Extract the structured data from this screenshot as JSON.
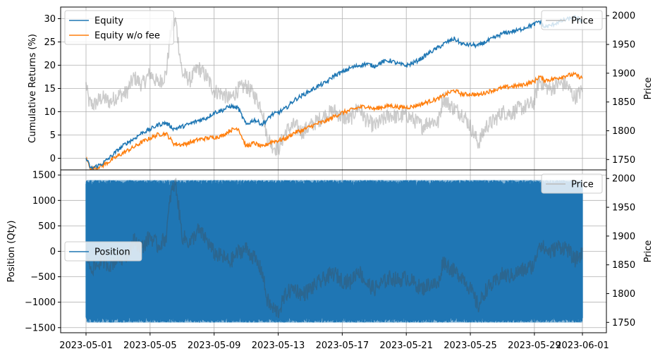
{
  "chart_data": [
    {
      "type": "line",
      "panel": "top",
      "ylabel": "Cumulative Returns (%)",
      "y2label": "Price",
      "ylim": [
        -2.5,
        32.5
      ],
      "y2lim": [
        1732,
        2015
      ],
      "yticks": [
        0,
        5,
        10,
        15,
        20,
        25,
        30
      ],
      "y2ticks": [
        1750,
        1800,
        1850,
        1900,
        1950,
        2000
      ],
      "grid": true,
      "legend_left": {
        "placement": "upper-left",
        "entries": [
          "Equity",
          "Equity w/o fee"
        ]
      },
      "legend_right": {
        "placement": "upper-right",
        "entries": [
          "Price"
        ]
      },
      "series": [
        {
          "name": "Equity",
          "color": "#1f77b4",
          "axis": "left",
          "x": [
            0,
            0.3,
            0.6,
            1,
            1.5,
            2,
            2.5,
            3,
            3.5,
            4,
            4.5,
            5,
            5.5,
            6,
            6.5,
            7,
            7.5,
            8,
            8.5,
            9,
            9.5,
            10,
            10.5,
            11,
            11.3,
            11.6,
            12,
            12.5,
            13,
            13.5,
            14,
            14.5,
            15,
            15.5,
            16,
            16.5,
            17,
            17.5,
            18,
            18.5,
            19,
            19.5,
            20,
            20.5,
            21,
            21.5,
            22,
            22.5,
            23,
            23.5,
            24,
            24.5,
            25,
            25.5,
            26,
            26.5,
            27,
            27.5,
            28,
            28.3,
            28.6,
            29,
            29.5,
            30,
            30.5,
            31
          ],
          "values": [
            0,
            -2.2,
            -1.8,
            -1.2,
            0.2,
            1.8,
            3.2,
            4.2,
            5.5,
            6.2,
            7.2,
            7.6,
            6.3,
            6.8,
            7.4,
            8.1,
            8.6,
            9.8,
            10.3,
            11.2,
            10.8,
            7.2,
            8.3,
            7.3,
            8.2,
            9.4,
            9.8,
            10.8,
            12.5,
            13.5,
            14.5,
            15.5,
            16.3,
            17.8,
            18.5,
            19.4,
            19.9,
            20.3,
            19.8,
            20.7,
            21.0,
            20.3,
            19.9,
            20.6,
            21.6,
            22.8,
            23.8,
            24.9,
            25.7,
            24.5,
            24.4,
            24.2,
            25.1,
            25.9,
            26.8,
            27.2,
            27.5,
            28.2,
            28.8,
            29.5,
            28.2,
            28.5,
            29.3,
            29.8,
            30.3,
            29.6
          ]
        },
        {
          "name": "Equity w/o fee",
          "color": "#ff7f0e",
          "axis": "left",
          "x": [
            0,
            0.3,
            0.6,
            1,
            1.5,
            2,
            2.5,
            3,
            3.5,
            4,
            4.5,
            5,
            5.5,
            6,
            6.5,
            7,
            7.5,
            8,
            8.5,
            9,
            9.5,
            10,
            10.5,
            11,
            11.3,
            11.6,
            12,
            12.5,
            13,
            13.5,
            14,
            14.5,
            15,
            15.5,
            16,
            16.5,
            17,
            17.5,
            18,
            18.5,
            19,
            19.5,
            20,
            20.5,
            21,
            21.5,
            22,
            22.5,
            23,
            23.5,
            24,
            24.5,
            25,
            25.5,
            26,
            26.5,
            27,
            27.5,
            28,
            28.3,
            28.6,
            29,
            29.5,
            30,
            30.5,
            31
          ],
          "values": [
            0,
            -2.2,
            -2.0,
            -1.6,
            -0.6,
            0.5,
            1.5,
            2.4,
            3.5,
            4.3,
            5.1,
            5.3,
            3.1,
            2.9,
            3.4,
            4.0,
            4.3,
            4.5,
            4.8,
            6.0,
            6.5,
            2.5,
            3.3,
            2.4,
            3.0,
            3.6,
            3.8,
            4.3,
            5.5,
            6.0,
            6.8,
            7.5,
            8.0,
            9.0,
            9.8,
            10.3,
            10.9,
            11.2,
            10.6,
            11.0,
            11.3,
            11.0,
            10.9,
            11.2,
            11.7,
            12.3,
            12.8,
            13.8,
            14.6,
            13.7,
            13.8,
            13.6,
            14.2,
            14.7,
            15.1,
            15.4,
            15.6,
            16.0,
            16.5,
            17.6,
            16.8,
            16.9,
            17.3,
            17.8,
            18.0,
            17.2
          ]
        },
        {
          "name": "Price",
          "color": "#999999",
          "opacity": 0.5,
          "axis": "right",
          "x": [
            0,
            0.2,
            0.5,
            1,
            1.5,
            2,
            2.5,
            3,
            3.5,
            4,
            4.5,
            5,
            5.3,
            5.6,
            6,
            6.5,
            7,
            7.5,
            8,
            8.5,
            9,
            9.5,
            10,
            10.5,
            11,
            11.3,
            11.6,
            12,
            12.5,
            13,
            13.5,
            14,
            14.5,
            15,
            15.5,
            16,
            16.5,
            17,
            17.5,
            18,
            18.5,
            19,
            19.5,
            20,
            20.5,
            21,
            21.5,
            22,
            22.3,
            22.6,
            23,
            23.5,
            24,
            24.5,
            25,
            25.5,
            26,
            26.5,
            27,
            27.5,
            28,
            28.3,
            28.6,
            29,
            29.5,
            30,
            30.5,
            31
          ],
          "values": [
            1880,
            1848,
            1845,
            1858,
            1850,
            1862,
            1865,
            1893,
            1880,
            1900,
            1882,
            1898,
            1975,
            1992,
            1900,
            1888,
            1910,
            1895,
            1870,
            1864,
            1855,
            1872,
            1878,
            1862,
            1838,
            1790,
            1775,
            1768,
            1800,
            1810,
            1798,
            1808,
            1818,
            1828,
            1835,
            1823,
            1820,
            1842,
            1818,
            1808,
            1818,
            1828,
            1823,
            1828,
            1818,
            1808,
            1818,
            1814,
            1858,
            1848,
            1838,
            1830,
            1808,
            1778,
            1808,
            1818,
            1833,
            1830,
            1838,
            1842,
            1850,
            1890,
            1878,
            1872,
            1882,
            1880,
            1858,
            1870
          ]
        }
      ]
    },
    {
      "type": "line",
      "panel": "bottom",
      "ylabel": "Position (Qty)",
      "y2label": "Price",
      "ylim": [
        -1600,
        1600
      ],
      "y2lim": [
        1732,
        2015
      ],
      "yticks": [
        -1500,
        -1000,
        -500,
        0,
        500,
        1000,
        1500
      ],
      "y2ticks": [
        1750,
        1800,
        1850,
        1900,
        1950,
        2000
      ],
      "grid": true,
      "x_ticks": [
        "2023-05-01",
        "2023-05-05",
        "2023-05-09",
        "2023-05-13",
        "2023-05-17",
        "2023-05-21",
        "2023-05-25",
        "2023-05-29",
        "2023-06-01"
      ],
      "x_tick_days": [
        0,
        4,
        8,
        12,
        16,
        20,
        24,
        28,
        31
      ],
      "legend_left": {
        "placement": "center-left",
        "entries": [
          "Position"
        ]
      },
      "legend_right": {
        "placement": "upper-right",
        "entries": [
          "Price"
        ]
      },
      "series": [
        {
          "name": "Position",
          "color": "#1f77b4",
          "axis": "left",
          "range": [
            -1400,
            1400
          ],
          "note": "rapidly oscillating long/short position"
        },
        {
          "name": "Price",
          "color": "#444444",
          "opacity": 0.3,
          "axis": "right",
          "source": "same as top panel Price"
        }
      ]
    }
  ]
}
